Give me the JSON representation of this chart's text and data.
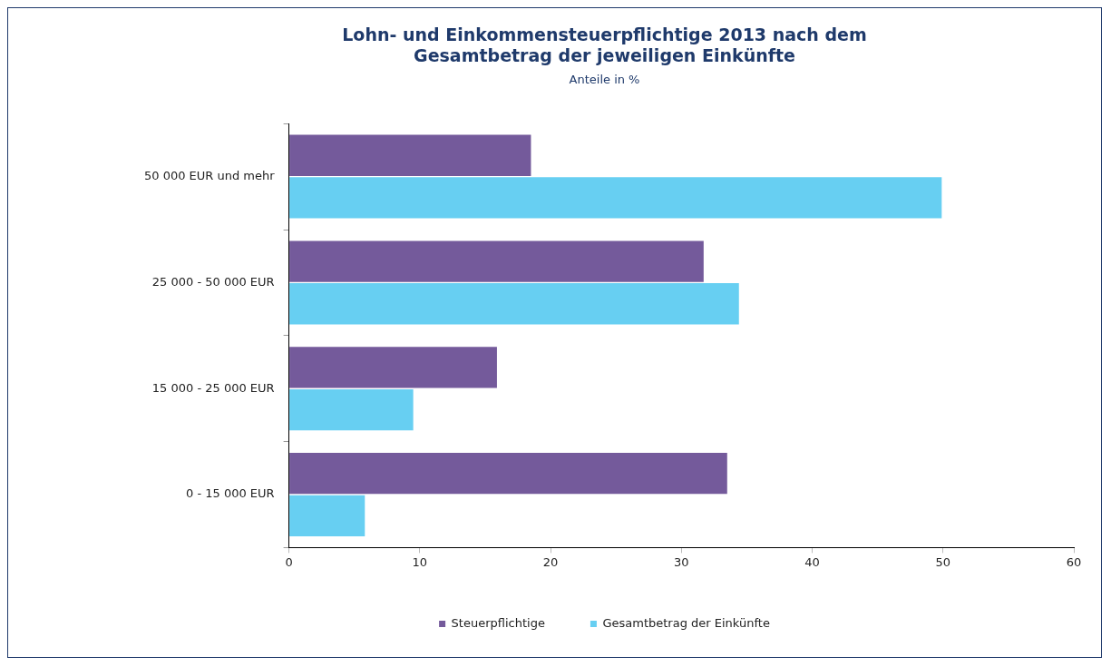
{
  "chart_data": {
    "type": "bar",
    "orientation": "horizontal",
    "title": "Lohn- und Einkommensteuerpflichtige 2013 nach dem Gesamtbetrag der jeweiligen Einkünfte",
    "subtitle": "Anteile in %",
    "categories": [
      "50 000 EUR und mehr",
      "25 000 - 50 000 EUR",
      "15 000 - 25 000 EUR",
      "0 - 15 000 EUR"
    ],
    "series": [
      {
        "name": "Steuerpflichtige",
        "color": "#745a9b",
        "values": [
          18.5,
          31.7,
          15.9,
          33.5
        ]
      },
      {
        "name": "Gesamtbetrag der Einkünfte",
        "color": "#67cff2",
        "values": [
          49.9,
          34.4,
          9.5,
          5.8
        ]
      }
    ],
    "xlim": [
      0,
      60
    ],
    "xticks": [
      0,
      10,
      20,
      30,
      40,
      50,
      60
    ],
    "legend": "bottom"
  }
}
